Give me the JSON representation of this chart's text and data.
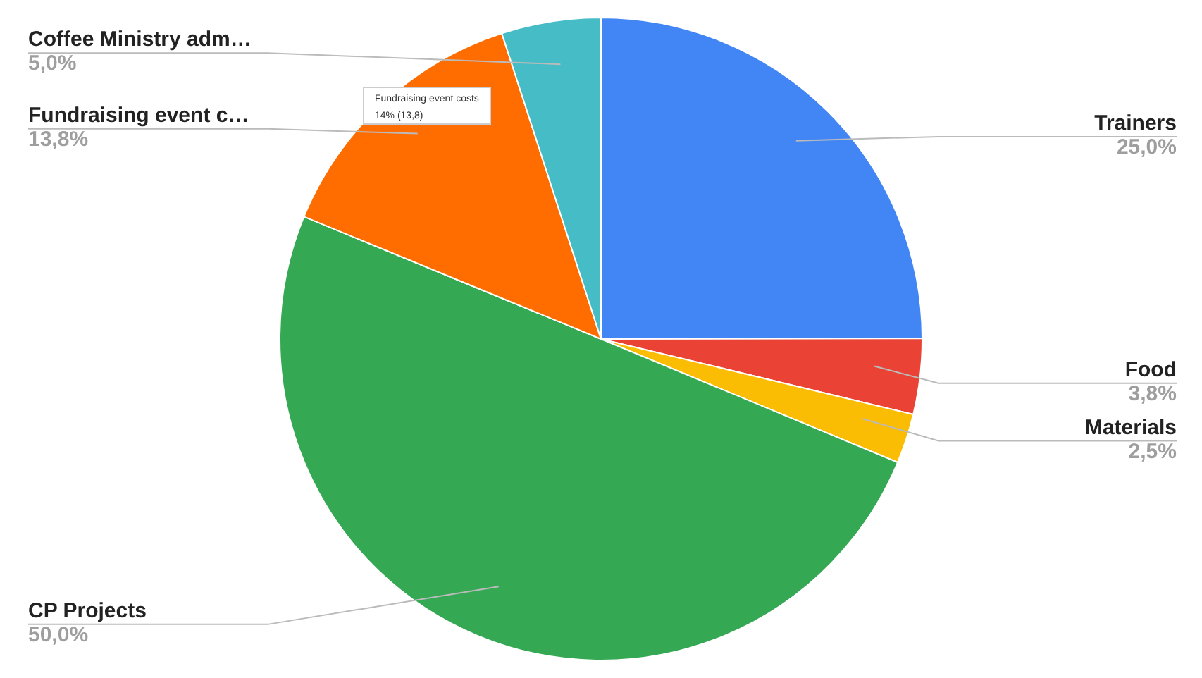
{
  "chart_data": {
    "type": "pie",
    "categories": [
      "Trainers",
      "Food",
      "Materials",
      "CP Projects",
      "Fundraising event c…",
      "Coffee Ministry adm…"
    ],
    "values": [
      25.0,
      3.8,
      2.5,
      50.0,
      13.8,
      5.0
    ],
    "colors": [
      "#4285f4",
      "#ea4335",
      "#fbbc04",
      "#34a853",
      "#ff6d01",
      "#46bdc6"
    ],
    "value_labels": [
      "25,0%",
      "3,8%",
      "2,5%",
      "50,0%",
      "13,8%",
      "5,0%"
    ],
    "annotations": [
      "Fundraising event costs",
      "14% (13,8)"
    ]
  }
}
